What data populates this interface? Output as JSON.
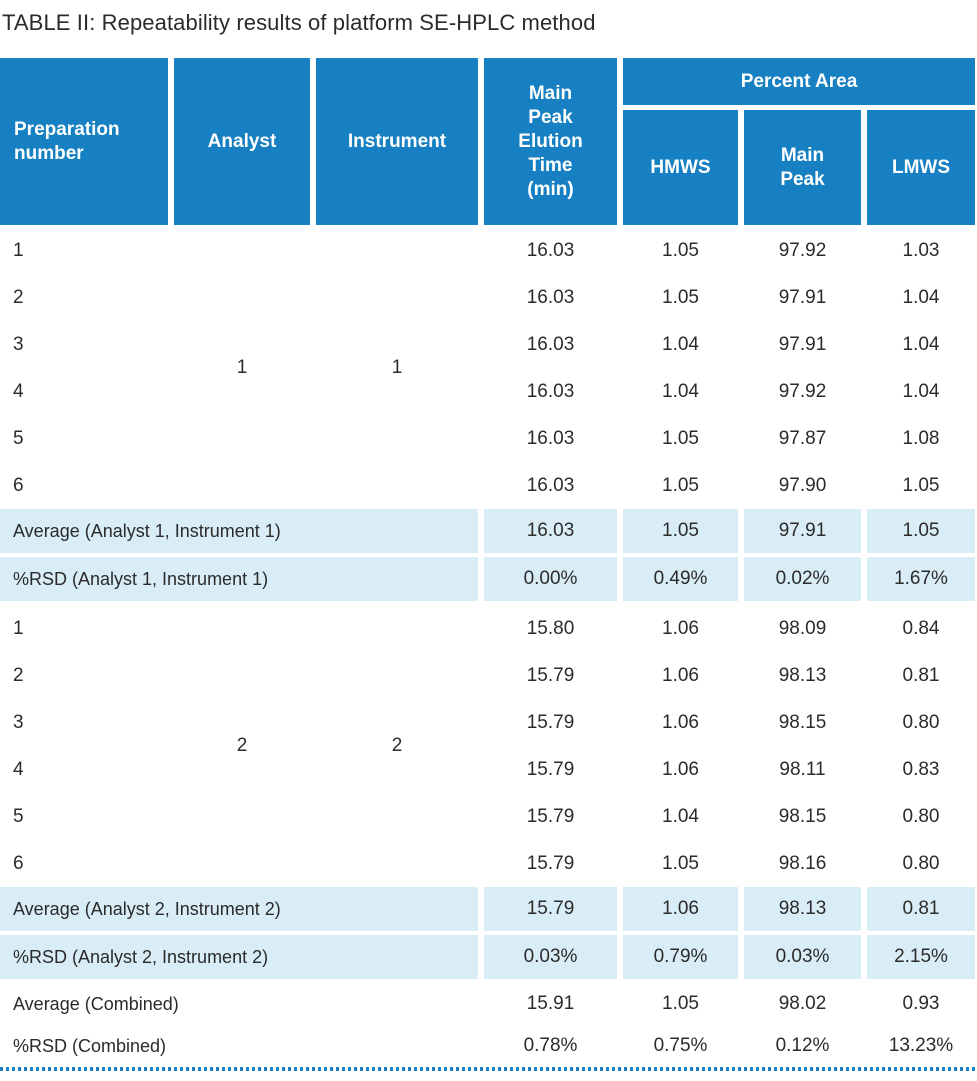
{
  "title": "TABLE II: Repeatability results of platform SE-HPLC method",
  "colors": {
    "header_blue": "#1780c2",
    "row_light_blue": "#d9edf6",
    "text": "#2b2b2b"
  },
  "table": {
    "percent_area_label": "Percent Area",
    "columns": [
      {
        "key": "prep",
        "label": "Preparation\nnumber"
      },
      {
        "key": "analyst",
        "label": "Analyst"
      },
      {
        "key": "instrument",
        "label": "Instrument"
      },
      {
        "key": "elution",
        "label": "Main\nPeak\nElution\nTime\n(min)"
      },
      {
        "key": "hmws",
        "label": "HMWS"
      },
      {
        "key": "main_peak",
        "label": "Main\nPeak"
      },
      {
        "key": "lmws",
        "label": "LMWS"
      }
    ],
    "value_column_keys": [
      "elution",
      "hmws",
      "main_peak",
      "lmws"
    ],
    "sections": [
      {
        "analyst": "1",
        "instrument": "1",
        "rows": [
          {
            "prep": "1",
            "values": [
              "16.03",
              "1.05",
              "97.92",
              "1.03"
            ]
          },
          {
            "prep": "2",
            "values": [
              "16.03",
              "1.05",
              "97.91",
              "1.04"
            ]
          },
          {
            "prep": "3",
            "values": [
              "16.03",
              "1.04",
              "97.91",
              "1.04"
            ]
          },
          {
            "prep": "4",
            "values": [
              "16.03",
              "1.04",
              "97.92",
              "1.04"
            ]
          },
          {
            "prep": "5",
            "values": [
              "16.03",
              "1.05",
              "97.87",
              "1.08"
            ]
          },
          {
            "prep": "6",
            "values": [
              "16.03",
              "1.05",
              "97.90",
              "1.05"
            ]
          }
        ],
        "summary_rows": [
          {
            "label": "Average (Analyst 1, Instrument 1)",
            "values": [
              "16.03",
              "1.05",
              "97.91",
              "1.05"
            ],
            "shaded": true
          },
          {
            "label": "%RSD (Analyst 1, Instrument 1)",
            "values": [
              "0.00%",
              "0.49%",
              "0.02%",
              "1.67%"
            ],
            "shaded": true
          }
        ]
      },
      {
        "analyst": "2",
        "instrument": "2",
        "rows": [
          {
            "prep": "1",
            "values": [
              "15.80",
              "1.06",
              "98.09",
              "0.84"
            ]
          },
          {
            "prep": "2",
            "values": [
              "15.79",
              "1.06",
              "98.13",
              "0.81"
            ]
          },
          {
            "prep": "3",
            "values": [
              "15.79",
              "1.06",
              "98.15",
              "0.80"
            ]
          },
          {
            "prep": "4",
            "values": [
              "15.79",
              "1.06",
              "98.11",
              "0.83"
            ]
          },
          {
            "prep": "5",
            "values": [
              "15.79",
              "1.04",
              "98.15",
              "0.80"
            ]
          },
          {
            "prep": "6",
            "values": [
              "15.79",
              "1.05",
              "98.16",
              "0.80"
            ]
          }
        ],
        "summary_rows": [
          {
            "label": "Average (Analyst 2, Instrument 2)",
            "values": [
              "15.79",
              "1.06",
              "98.13",
              "0.81"
            ],
            "shaded": true
          },
          {
            "label": "%RSD (Analyst 2, Instrument 2)",
            "values": [
              "0.03%",
              "0.79%",
              "0.03%",
              "2.15%"
            ],
            "shaded": true
          }
        ]
      }
    ],
    "combined_rows": [
      {
        "label": "Average (Combined)",
        "values": [
          "15.91",
          "1.05",
          "98.02",
          "0.93"
        ],
        "shaded": false
      },
      {
        "label": "%RSD (Combined)",
        "values": [
          "0.78%",
          "0.75%",
          "0.12%",
          "13.23%"
        ],
        "shaded": false
      }
    ]
  }
}
